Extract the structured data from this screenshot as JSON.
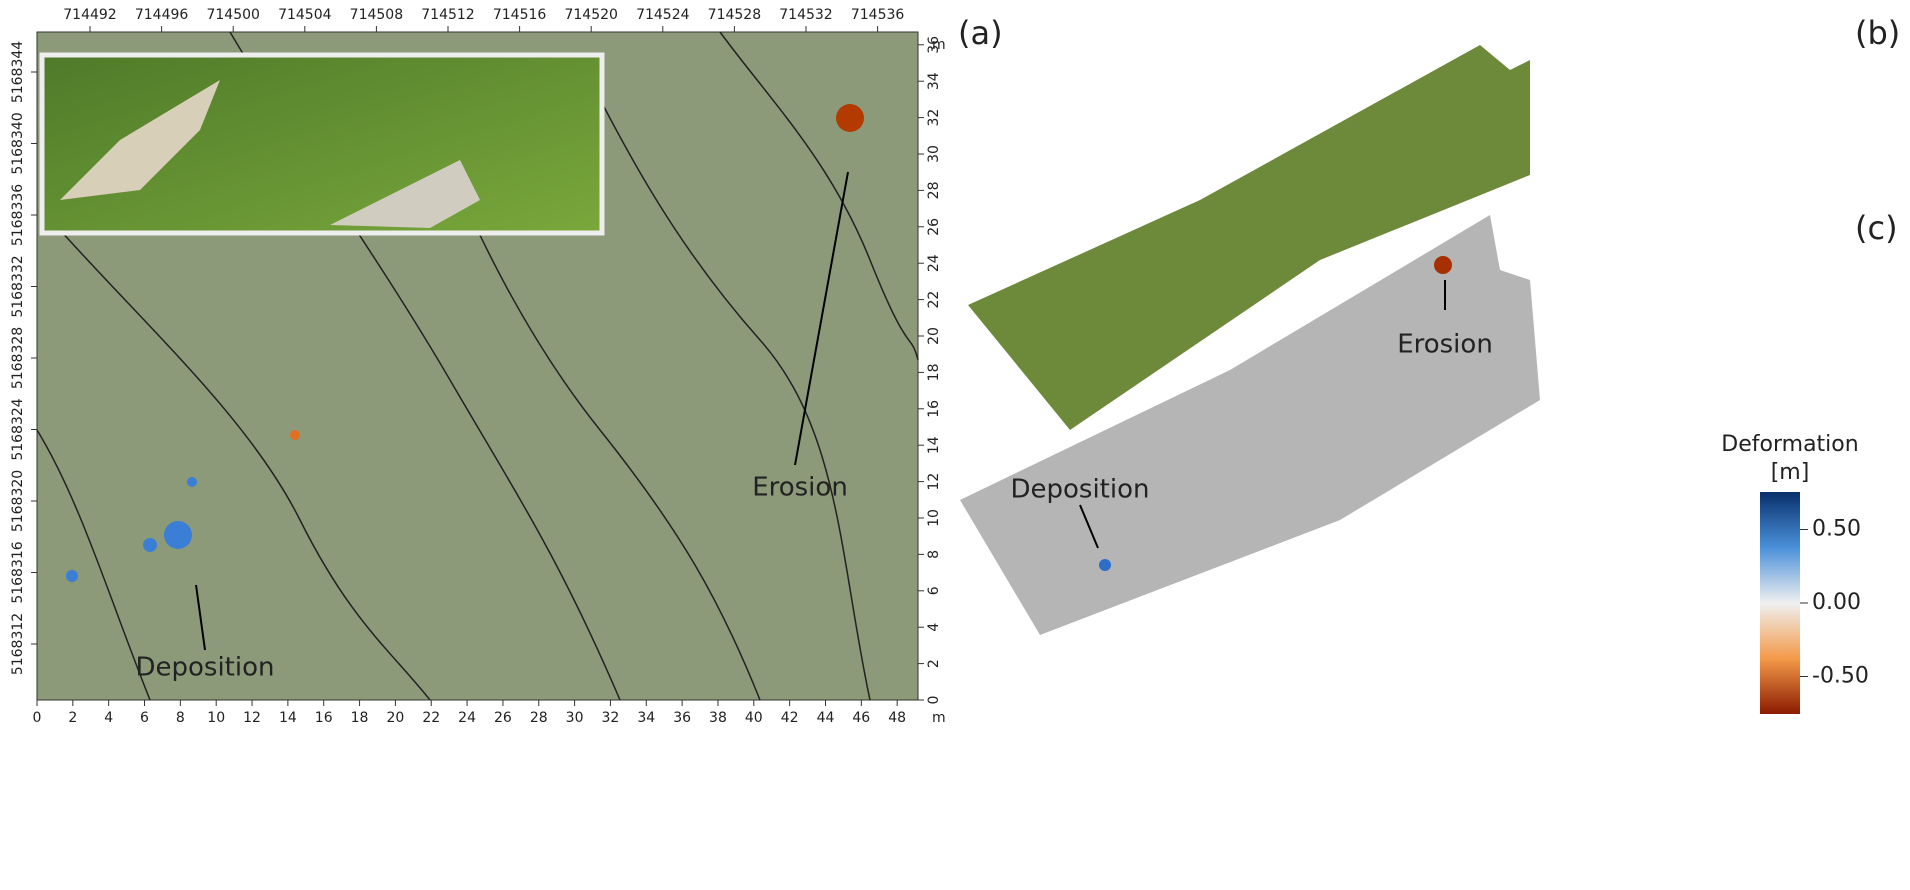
{
  "panel_labels": {
    "a": "(a)",
    "b": "(b)",
    "c": "(c)"
  },
  "map": {
    "top_ticks": [
      714492,
      714496,
      714500,
      714504,
      714508,
      714512,
      714516,
      714520,
      714524,
      714528,
      714532,
      714536
    ],
    "left_ticks": [
      5168312,
      5168316,
      5168320,
      5168324,
      5168328,
      5168332,
      5168336,
      5168340,
      5168344
    ],
    "bottom_ticks": [
      0,
      2,
      4,
      6,
      8,
      10,
      12,
      14,
      16,
      18,
      20,
      22,
      24,
      26,
      28,
      30,
      32,
      34,
      36,
      38,
      40,
      42,
      44,
      46,
      48
    ],
    "right_ticks": [
      0,
      2,
      4,
      6,
      8,
      10,
      12,
      14,
      16,
      18,
      20,
      22,
      24,
      26,
      28,
      30,
      32,
      34,
      36
    ],
    "unit": "m",
    "annotations": {
      "deposition": "Deposition",
      "erosion": "Erosion"
    }
  },
  "model": {
    "annotations": {
      "deposition": "Deposition",
      "erosion": "Erosion"
    }
  },
  "colorbar": {
    "title": "Deformation",
    "unit": "[m]",
    "ticks": [
      {
        "value": 0.5,
        "label": "0.50"
      },
      {
        "value": 0,
        "label": "0.00"
      },
      {
        "value": -0.5,
        "label": "-0.50"
      }
    ]
  }
}
